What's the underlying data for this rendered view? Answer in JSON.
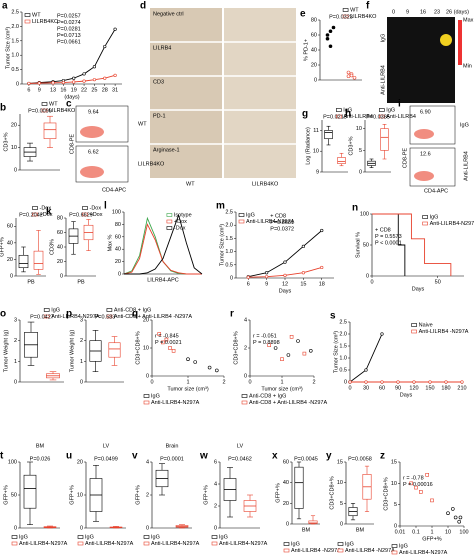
{
  "chart_data": [
    {
      "panel": "a",
      "type": "line",
      "ylabel": "Tumor Size (cm³)",
      "xlabel": "(days)",
      "x": [
        6,
        9,
        13,
        16,
        19,
        22,
        25,
        28,
        31
      ],
      "xlim": [
        4,
        33
      ],
      "xticks": [
        6,
        9,
        13,
        16,
        19,
        22,
        25,
        28,
        31
      ],
      "ylim": [
        0,
        2.5
      ],
      "yticks": [
        0,
        0.5,
        {
          "value": 1,
          "label": "1.0"
        },
        1.5,
        {
          "value": 2,
          "label": "2.0"
        },
        2.5
      ],
      "legend": "upper left",
      "series": [
        {
          "name": "WT",
          "color": "#000000",
          "values": [
            0.02,
            0.05,
            0.08,
            0.12,
            0.2,
            0.35,
            0.6,
            1.3,
            1.9
          ]
        },
        {
          "name": "LILRB4KO",
          "color": "#e8412c",
          "values": [
            0.02,
            0.03,
            0.04,
            0.05,
            0.07,
            0.1,
            0.15,
            0.2,
            0.3
          ]
        }
      ],
      "annotations": [
        "P=0.0257",
        "P=0.0274",
        "P=0.0281",
        "P=0.0713",
        "P=0.0661"
      ]
    },
    {
      "panel": "b",
      "type": "box",
      "ylabel": "CD3+%",
      "ylim": [
        0,
        25
      ],
      "yticks": [
        0,
        10,
        20
      ],
      "legend": "upper right",
      "series": [
        {
          "name": "WT",
          "color": "#000000",
          "min": 4,
          "q1": 6,
          "median": 8,
          "q3": 10,
          "max": 12
        },
        {
          "name": "LILRB4KO",
          "color": "#e8412c",
          "min": 10,
          "q1": 14,
          "median": 18,
          "q3": 21,
          "max": 24
        }
      ],
      "annotations": [
        "P=0.0099"
      ]
    },
    {
      "panel": "e",
      "type": "dot",
      "ylabel": "% PD-1+",
      "ylim": [
        0,
        80
      ],
      "yticks": [
        0,
        20,
        40,
        60,
        80
      ],
      "legend": "upper right",
      "series": [
        {
          "name": "WT",
          "color": "#000000",
          "values": [
            60,
            65,
            70,
            55,
            45
          ]
        },
        {
          "name": "LILRB4KO",
          "color": "#e8412c",
          "values": [
            5,
            8,
            3,
            10,
            6
          ]
        }
      ],
      "annotations": [
        "P=0.0323"
      ]
    },
    {
      "panel": "g",
      "type": "box",
      "ylabel": "Log (Radiance)",
      "ylim": [
        9,
        11.5
      ],
      "yticks": [
        9,
        10,
        11
      ],
      "legend": "upper right",
      "series": [
        {
          "name": "IgG",
          "color": "#000000",
          "min": 10.3,
          "q1": 10.6,
          "median": 10.9,
          "q3": 11,
          "max": 11.2
        },
        {
          "name": "Anti-LILRB4",
          "color": "#e8412c",
          "min": 9.3,
          "q1": 9.4,
          "median": 9.5,
          "q3": 9.7,
          "max": 9.9
        }
      ],
      "annotations": [
        "P=0.0213"
      ]
    },
    {
      "panel": "h",
      "type": "box",
      "ylabel": "CD3+%",
      "ylim": [
        0,
        12
      ],
      "yticks": [
        0,
        5,
        10
      ],
      "legend": "upper right",
      "series": [
        {
          "name": "IgG",
          "color": "#000000",
          "min": 1,
          "q1": 1.5,
          "median": 2,
          "q3": 2.5,
          "max": 3
        },
        {
          "name": "Anti-LILRB4",
          "color": "#e8412c",
          "min": 3,
          "q1": 5,
          "median": 8,
          "q3": 10,
          "max": 11
        }
      ],
      "annotations": [
        "P=0.0385"
      ]
    },
    {
      "panel": "j",
      "type": "box",
      "ylabel": "GFP+%",
      "xlabel": "PB",
      "ylim": [
        0,
        70
      ],
      "yticks": [
        0,
        20,
        40,
        60
      ],
      "legend": "upper right",
      "series": [
        {
          "name": "-Dox",
          "color": "#000000",
          "min": 5,
          "q1": 10,
          "median": 15,
          "q3": 25,
          "max": 35
        },
        {
          "name": "+Dox",
          "color": "#e8412c",
          "min": 2,
          "q1": 8,
          "median": 15,
          "q3": 30,
          "max": 55
        }
      ],
      "annotations": [
        "P=0.2042"
      ]
    },
    {
      "panel": "k",
      "type": "box",
      "ylabel": "CD3%",
      "xlabel": "PB",
      "ylim": [
        0,
        80
      ],
      "yticks": [
        0,
        20,
        40,
        60,
        80
      ],
      "legend": "upper right",
      "series": [
        {
          "name": "-Dox",
          "color": "#000000",
          "min": 30,
          "q1": 45,
          "median": 55,
          "q3": 65,
          "max": 75
        },
        {
          "name": "+Dox",
          "color": "#e8412c",
          "min": 35,
          "q1": 50,
          "median": 60,
          "q3": 70,
          "max": 78
        }
      ],
      "annotations": [
        "P=0.6629"
      ]
    },
    {
      "panel": "l",
      "type": "line",
      "ylabel": "Max %",
      "xlabel": "LILRB4-APC",
      "x": [
        0,
        1,
        2,
        3,
        4,
        5,
        6,
        7,
        8,
        9,
        10
      ],
      "xlim": [
        0,
        10
      ],
      "xticks": [],
      "ylim": [
        0,
        100
      ],
      "yticks": [
        0,
        20,
        40,
        60,
        80,
        100
      ],
      "legend": "upper right",
      "markers": false,
      "series": [
        {
          "name": "Isotype",
          "color": "#3aa64a",
          "values": [
            0,
            5,
            30,
            90,
            60,
            20,
            5,
            1,
            0,
            0,
            0
          ]
        },
        {
          "name": "+Dox",
          "color": "#e8412c",
          "values": [
            0,
            3,
            25,
            80,
            55,
            20,
            6,
            2,
            0,
            0,
            0
          ]
        },
        {
          "name": "-Dox",
          "color": "#000000",
          "values": [
            0,
            0,
            0,
            2,
            8,
            25,
            60,
            95,
            50,
            10,
            0
          ]
        }
      ]
    },
    {
      "panel": "m",
      "type": "line",
      "ylabel": "Tumor Size (cm³)",
      "xlabel": "Days",
      "x": [
        6,
        9,
        12,
        15,
        18
      ],
      "xlim": [
        4,
        20
      ],
      "xticks": [
        6,
        9,
        12,
        15,
        18
      ],
      "ylim": [
        0,
        2.5
      ],
      "yticks": [
        0,
        0.5,
        {
          "value": 1,
          "label": "1.0"
        },
        1.5,
        {
          "value": 2,
          "label": "2.0"
        },
        2.5
      ],
      "legend": "upper left",
      "series": [
        {
          "name": "IgG",
          "color": "#000000",
          "values": [
            0.05,
            0.2,
            0.6,
            1.2,
            1.8
          ]
        },
        {
          "name": "Anti-LILRB4-N297A",
          "color": "#e8412c",
          "values": [
            0.03,
            0.05,
            0.1,
            0.2,
            0.4
          ]
        }
      ],
      "annotations": [
        "+ CD8",
        "P=0.8681",
        "P=0.0372"
      ]
    },
    {
      "panel": "n",
      "type": "line",
      "ylabel": "Survival %",
      "xlabel": "Days",
      "xlim": [
        0,
        70
      ],
      "xticks": [
        0,
        50
      ],
      "ylim": [
        0,
        100
      ],
      "yticks": [
        0,
        50,
        100
      ],
      "legend": "upper right",
      "markers": false,
      "series": [
        {
          "name": "IgG",
          "color": "#000000",
          "x": [
            0,
            20,
            20,
            25,
            25
          ],
          "values": [
            100,
            100,
            50,
            50,
            0
          ]
        },
        {
          "name": "Anti-LILRB4-N297A",
          "color": "#e8412c",
          "x": [
            0,
            30,
            30,
            40,
            40,
            60,
            60
          ],
          "values": [
            100,
            100,
            60,
            60,
            20,
            20,
            0
          ]
        }
      ],
      "annotations": [
        "+ CD8",
        "P = 0.5573",
        "P < 0.0001"
      ]
    },
    {
      "panel": "o",
      "type": "box",
      "ylabel": "Tumor Weight (g)",
      "ylim": [
        0,
        3
      ],
      "yticks": [
        0,
        1,
        2,
        3
      ],
      "legend": "upper right",
      "series": [
        {
          "name": "IgG",
          "color": "#000000",
          "min": 0.8,
          "q1": 1.2,
          "median": 1.8,
          "q3": 2.4,
          "max": 2.9
        },
        {
          "name": "Anti-LILRB4-N297A",
          "color": "#e8412c",
          "min": 0.1,
          "q1": 0.2,
          "median": 0.3,
          "q3": 0.4,
          "max": 0.5
        }
      ],
      "annotations": [
        "P=0.0427"
      ]
    },
    {
      "panel": "p",
      "type": "box",
      "ylabel": "Tumor Weight (g)",
      "ylim": [
        0,
        3
      ],
      "yticks": [
        0,
        1,
        2,
        3
      ],
      "legend": "upper right",
      "series": [
        {
          "name": "Anti-CD8 + IgG",
          "color": "#000000",
          "min": 0.5,
          "q1": 1,
          "median": 1.5,
          "q3": 2,
          "max": 2.5
        },
        {
          "name": "Anti-CD8 + Anti-LILRB4 -N297A",
          "color": "#e8412c",
          "min": 0.8,
          "q1": 1.2,
          "median": 1.6,
          "q3": 1.9,
          "max": 2.2
        }
      ],
      "annotations": [
        "P=0.583"
      ]
    },
    {
      "panel": "q",
      "type": "scatter",
      "ylabel": "CD3+CD8+%",
      "xlabel": "Tumor size (cm³)",
      "xlim": [
        0,
        2
      ],
      "xticks": [
        0,
        1,
        2
      ],
      "ylim": [
        0,
        20
      ],
      "yticks": [
        0,
        10,
        20
      ],
      "legend": "below",
      "series": [
        {
          "name": "IgG",
          "color": "#000000",
          "x": [
            1.2,
            1.6,
            1.8,
            1.0
          ],
          "values": [
            5,
            3,
            2,
            6
          ]
        },
        {
          "name": "Anti-LILRB4-N297A",
          "color": "#e8412c",
          "x": [
            0.2,
            0.3,
            0.5,
            0.4,
            0.6
          ],
          "values": [
            15,
            12,
            10,
            13,
            9
          ]
        }
      ],
      "annotations": [
        "r = -0.845",
        "P = 0.0021"
      ]
    },
    {
      "panel": "r",
      "type": "scatter",
      "ylabel": "CD3+CD8+%",
      "xlabel": "Tumor size (cm³)",
      "xlim": [
        0,
        2
      ],
      "xticks": [
        0,
        1,
        2
      ],
      "ylim": [
        0,
        4
      ],
      "yticks": [
        0,
        2,
        4
      ],
      "legend": "below",
      "series": [
        {
          "name": "Anti-CD8 + IgG",
          "color": "#000000",
          "x": [
            0.8,
            1.2,
            1.5,
            1.9
          ],
          "values": [
            2,
            1.5,
            2.5,
            1.8
          ]
        },
        {
          "name": "Anti-CD8 + Anti-LILRB4 -N297A",
          "color": "#e8412c",
          "x": [
            0.6,
            1.0,
            1.3,
            1.7
          ],
          "values": [
            2.2,
            1.2,
            2.8,
            1.6
          ]
        }
      ],
      "annotations": [
        "r = -0.051",
        "P = 0.8898"
      ]
    },
    {
      "panel": "s",
      "type": "line",
      "ylabel": "Tumor Size (cm³)",
      "xlabel": "Days",
      "x": [
        0,
        30,
        60,
        90,
        120,
        150,
        180,
        210
      ],
      "xlim": [
        0,
        210
      ],
      "xticks": [
        0,
        30,
        60,
        90,
        120,
        150,
        180,
        210
      ],
      "ylim": [
        0,
        2.5
      ],
      "yticks": [
        0,
        0.5,
        {
          "value": 1,
          "label": "1.0"
        },
        1.5,
        {
          "value": 2,
          "label": "2.0"
        },
        2.5
      ],
      "legend": "upper right",
      "series": [
        {
          "name": "Naive",
          "color": "#000000",
          "values": [
            0,
            0.5,
            2,
            null,
            null,
            null,
            null,
            null
          ]
        },
        {
          "name": "Anti-LILRB4 -N297A",
          "color": "#e8412c",
          "values": [
            0,
            0,
            0,
            0,
            0,
            0,
            0,
            0
          ]
        }
      ]
    },
    {
      "panel": "t",
      "type": "box",
      "title": "BM",
      "ylabel": "GFP+%",
      "ylim": [
        0,
        100
      ],
      "yticks": [
        0,
        50,
        100
      ],
      "legend": "below",
      "series": [
        {
          "name": "IgG",
          "color": "#000000",
          "min": 5,
          "q1": 30,
          "median": 60,
          "q3": 80,
          "max": 100
        },
        {
          "name": "Anti-LILRB4-N297A",
          "color": "#e8412c",
          "min": 0,
          "q1": 0.5,
          "median": 1,
          "q3": 2,
          "max": 3
        }
      ],
      "annotations": [
        "P=0.026"
      ]
    },
    {
      "panel": "u",
      "type": "box",
      "title": "LV",
      "ylabel": "GFP+%",
      "ylim": [
        0,
        20
      ],
      "yticks": [
        0,
        10,
        20
      ],
      "legend": "below",
      "series": [
        {
          "name": "IgG",
          "color": "#000000",
          "min": 2,
          "q1": 5,
          "median": 10,
          "q3": 15,
          "max": 19
        },
        {
          "name": "Anti-LILRB4-N297A",
          "color": "#e8412c",
          "min": 0,
          "q1": 0.1,
          "median": 0.2,
          "q3": 0.3,
          "max": 0.5
        }
      ],
      "annotations": [
        "P=0.0499"
      ]
    },
    {
      "panel": "v",
      "type": "box",
      "title": "Brain",
      "ylabel": "GFP+%",
      "ylim": [
        0,
        4
      ],
      "yticks": [
        0,
        2,
        4
      ],
      "legend": "below",
      "series": [
        {
          "name": "IgG",
          "color": "#000000",
          "min": 2,
          "q1": 2.5,
          "median": 3,
          "q3": 3.5,
          "max": 3.9
        },
        {
          "name": "Anti-LILRB4-N297A",
          "color": "#e8412c",
          "min": 0,
          "q1": 0.05,
          "median": 0.1,
          "q3": 0.15,
          "max": 0.2
        }
      ],
      "annotations": [
        "P=0.0001"
      ]
    },
    {
      "panel": "w",
      "type": "box",
      "title": "LV",
      "ylabel": "GFP+%",
      "ylim": [
        0,
        6
      ],
      "yticks": [
        0,
        2,
        4,
        6
      ],
      "legend": "below",
      "series": [
        {
          "name": "IgG",
          "color": "#000000",
          "min": 1,
          "q1": 2.5,
          "median": 3.5,
          "q3": 4.5,
          "max": 5.5
        },
        {
          "name": "Anti-LILRB4-N297A",
          "color": "#e8412c",
          "min": 1,
          "q1": 1.5,
          "median": 2,
          "q3": 2.5,
          "max": 3
        }
      ],
      "annotations": [
        "P=0.0462"
      ]
    },
    {
      "panel": "x",
      "type": "box",
      "xlabel": "BM",
      "ylabel": "GFP+%",
      "ylim": [
        0,
        60
      ],
      "yticks": [
        0,
        20,
        40,
        60
      ],
      "legend": "below",
      "series": [
        {
          "name": "IgG",
          "color": "#000000",
          "min": 5,
          "q1": 15,
          "median": 40,
          "q3": 55,
          "max": 60
        },
        {
          "name": "Anti-LILRB4 -N297A",
          "color": "#e8412c",
          "min": 0,
          "q1": 0.5,
          "median": 1,
          "q3": 3,
          "max": 8
        }
      ],
      "annotations": [
        "P=0.0045"
      ]
    },
    {
      "panel": "y",
      "type": "box",
      "xlabel": "BM",
      "ylabel": "CD3+CD8+%",
      "ylim": [
        0,
        15
      ],
      "yticks": [
        0,
        5,
        10,
        15
      ],
      "legend": "below",
      "series": [
        {
          "name": "IgG",
          "color": "#000000",
          "min": 1,
          "q1": 2,
          "median": 3,
          "q3": 4,
          "max": 5
        },
        {
          "name": "Anti-LILRB4 -N297A",
          "color": "#e8412c",
          "min": 3,
          "q1": 6,
          "median": 9,
          "q3": 12,
          "max": 14
        }
      ],
      "annotations": [
        "P=0.0058"
      ]
    },
    {
      "panel": "z",
      "type": "scatter",
      "ylabel": "CD3+CD8+%",
      "xlabel": "GFP+%",
      "xlog": true,
      "xlim": [
        0.01,
        100
      ],
      "xticks": [
        0.01,
        0.1,
        1,
        10,
        100
      ],
      "ylim": [
        0,
        15
      ],
      "yticks": [
        0,
        5,
        10,
        15
      ],
      "legend": "below",
      "series": [
        {
          "name": "IgG",
          "color": "#000000",
          "x": [
            10,
            30,
            50,
            20,
            60
          ],
          "values": [
            3,
            2,
            1,
            4,
            2
          ]
        },
        {
          "name": "Anti-LILRB4-N297A",
          "color": "#e8412c",
          "x": [
            0.05,
            0.2,
            0.5,
            1,
            0.1
          ],
          "values": [
            10,
            8,
            12,
            6,
            9
          ]
        }
      ],
      "annotations": [
        "r = -0.78",
        "P = 0.00016"
      ]
    }
  ],
  "image_panels": [
    {
      "panel": "c",
      "texts": [
        "WT",
        "LILRB4KO",
        "CD8-PE",
        "CD4-APC",
        "9.64",
        "6.62"
      ]
    },
    {
      "panel": "d",
      "texts": [
        "Negative ctrl",
        "LILRB4",
        "CD3",
        "PD-1",
        "Arginase-1",
        "WT",
        "LILRB4KO"
      ]
    },
    {
      "panel": "f",
      "texts": [
        "0",
        "9",
        "16",
        "23",
        "26 (days)",
        "IgG",
        "Anti-LILRB4",
        "Max",
        "Min"
      ]
    },
    {
      "panel": "i",
      "texts": [
        "IgG",
        "Anti-LILRB4",
        "CD8-PE",
        "CD4-APC",
        "6.90",
        "12.6"
      ]
    }
  ]
}
